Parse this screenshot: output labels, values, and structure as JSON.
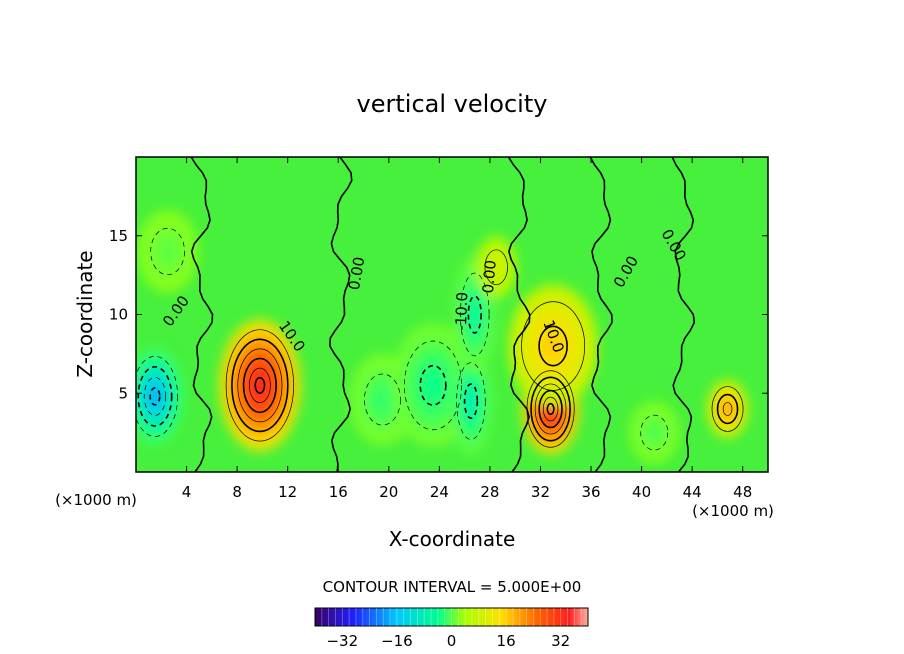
{
  "chart_data": {
    "type": "heatmap",
    "title": "vertical velocity",
    "xlabel": "X-coordinate",
    "ylabel": "Z-coordinate",
    "x_unit_label": "(×1000 m)",
    "z_unit_label": "(×1000 m)",
    "xlim": [
      0,
      50
    ],
    "ylim": [
      0,
      20
    ],
    "x_ticks": [
      4,
      8,
      12,
      16,
      20,
      24,
      28,
      32,
      36,
      40,
      44,
      48
    ],
    "y_ticks": [
      5,
      10,
      15
    ],
    "grid": false,
    "contour_interval_text": "CONTOUR INTERVAL = 5.000E+00",
    "contour_labels": [
      {
        "text": "0.00",
        "x": 3.2,
        "y": 10.2,
        "rot": -55
      },
      {
        "text": "0.00",
        "x": 17.5,
        "y": 12.6,
        "rot": -80
      },
      {
        "text": "10.0",
        "x": 12.3,
        "y": 8.6,
        "rot": 55
      },
      {
        "text": "-10.0",
        "x": 25.8,
        "y": 10.2,
        "rot": -88
      },
      {
        "text": "0.00",
        "x": 28.0,
        "y": 12.4,
        "rot": -85
      },
      {
        "text": "10.0",
        "x": 33.0,
        "y": 8.6,
        "rot": 70
      },
      {
        "text": "0.00",
        "x": 38.8,
        "y": 12.7,
        "rot": -60
      },
      {
        "text": "0.00",
        "x": 42.5,
        "y": 14.4,
        "rot": 60
      }
    ],
    "features": [
      {
        "x": 1.5,
        "z": 4.8,
        "value": -22,
        "sx": 1.4,
        "sz": 2.4
      },
      {
        "x": 9.8,
        "z": 5.5,
        "value": 30,
        "sx": 2.0,
        "sz": 3.2
      },
      {
        "x": 19.5,
        "z": 4.6,
        "value": -8,
        "sx": 1.6,
        "sz": 2.2
      },
      {
        "x": 23.5,
        "z": 5.5,
        "value": -10,
        "sx": 2.0,
        "sz": 3.0
      },
      {
        "x": 26.5,
        "z": 4.5,
        "value": -14,
        "sx": 1.0,
        "sz": 2.6
      },
      {
        "x": 26.8,
        "z": 10.0,
        "value": -12,
        "sx": 1.0,
        "sz": 2.8
      },
      {
        "x": 32.8,
        "z": 4.0,
        "value": 31,
        "sx": 1.4,
        "sz": 2.2
      },
      {
        "x": 33.0,
        "z": 8.0,
        "value": 12,
        "sx": 2.2,
        "sz": 3.0
      },
      {
        "x": 41.0,
        "z": 2.5,
        "value": -6,
        "sx": 1.2,
        "sz": 1.5
      },
      {
        "x": 46.8,
        "z": 4.0,
        "value": 16,
        "sx": 1.0,
        "sz": 1.4
      },
      {
        "x": 2.5,
        "z": 14.0,
        "value": -5,
        "sx": 1.5,
        "sz": 2.0
      },
      {
        "x": 28.5,
        "z": 13.0,
        "value": 5,
        "sx": 1.0,
        "sz": 1.5
      }
    ],
    "colorbar": {
      "ticks": [
        -32,
        -16,
        0,
        16,
        32
      ],
      "tick_labels": [
        "−32",
        "−16",
        "0",
        "16",
        "32"
      ],
      "range": [
        -40,
        40
      ],
      "colors": [
        "#3a0066",
        "#2020ff",
        "#00c8ff",
        "#00ff90",
        "#a8ff00",
        "#ffe000",
        "#ff6000",
        "#ff2020",
        "#ffb0a0"
      ]
    }
  }
}
